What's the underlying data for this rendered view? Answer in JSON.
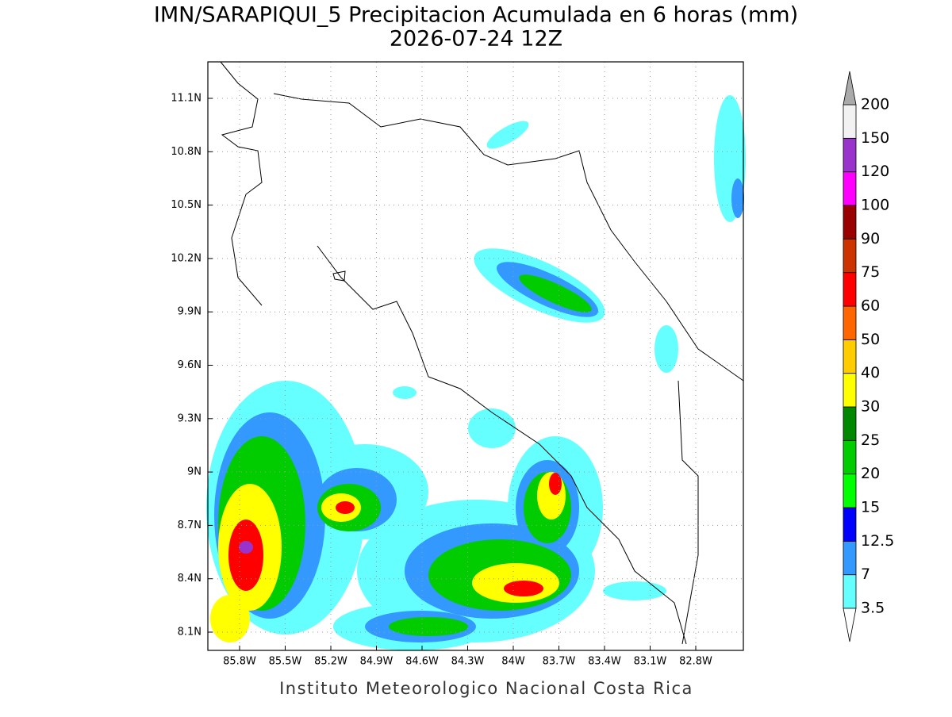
{
  "title": "IMN/SARAPIQUI_5 Precipitacion Acumulada en 6 horas (mm)",
  "subtitle": "2026-07-24 12Z",
  "lat_labels": [
    "11.1N",
    "10.8N",
    "10.5N",
    "10.2N",
    "9.9N",
    "9.6N",
    "9.3N",
    "9N",
    "8.7N",
    "8.4N",
    "8.1N"
  ],
  "lon_labels": [
    "85.8W",
    "85.5W",
    "85.2W",
    "84.9W",
    "84.6W",
    "84.3W",
    "84W",
    "83.7W",
    "83.4W",
    "83.1W",
    "82.8W"
  ],
  "colorbar": {
    "levels": [
      3.5,
      7,
      12.5,
      15,
      20,
      25,
      30,
      40,
      50,
      60,
      75,
      90,
      100,
      120,
      150,
      200
    ],
    "colors": [
      "#66ffff",
      "#3399ff",
      "#0000ff",
      "#00ff00",
      "#00cc00",
      "#008800",
      "#ffff00",
      "#ffcc00",
      "#ff6600",
      "#ff0000",
      "#cc3300",
      "#990000",
      "#ff00ff",
      "#9933cc",
      "#f2f2f2"
    ],
    "under_color": "#ffffff",
    "over_color": "#aaaaaa"
  },
  "footer": "Instituto Meteorologico Nacional Costa Rica"
}
